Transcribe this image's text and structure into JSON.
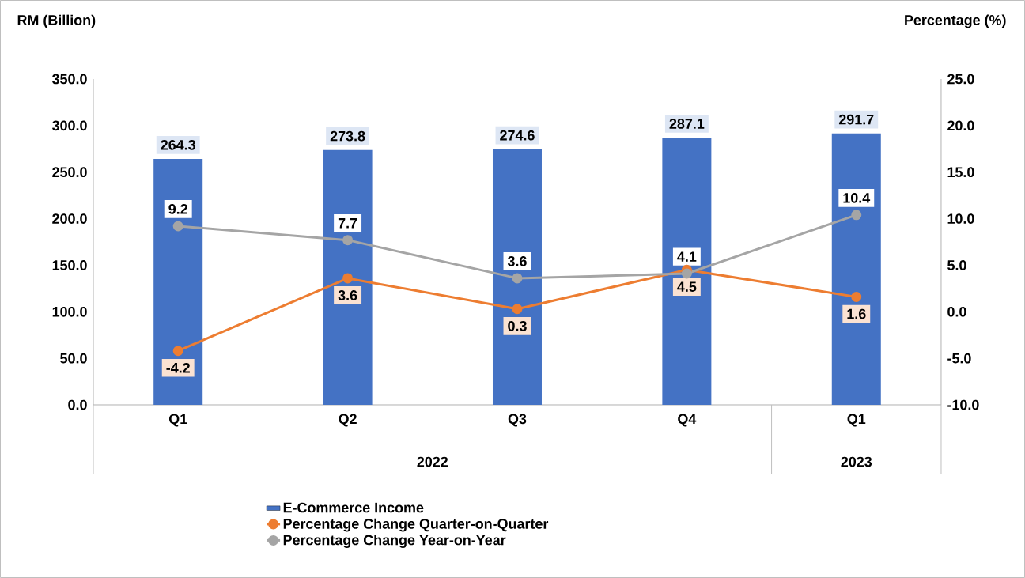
{
  "chart_data": {
    "type": "bar",
    "categories": [
      "Q1",
      "Q2",
      "Q3",
      "Q4",
      "Q1"
    ],
    "series": [
      {
        "name": "E-Commerce Income",
        "color": "#4472c4",
        "values": [
          264.3,
          273.8,
          274.6,
          287.1,
          291.7
        ]
      },
      {
        "name": "Percentage Change Quarter-on-Quarter",
        "type": "line",
        "axis": "y2",
        "color": "#ed7d31",
        "values": [
          -4.2,
          3.6,
          0.3,
          4.5,
          1.6
        ]
      },
      {
        "name": "Percentage Change Year-on-Year",
        "type": "line",
        "axis": "y2",
        "color": "#a5a5a5",
        "values": [
          9.2,
          7.7,
          3.6,
          4.1,
          10.4
        ]
      }
    ],
    "ylabel": "RM (Billion)",
    "y2label": "Percentage (%)",
    "annotations": [
      "2022",
      "2023"
    ],
    "ylim": [
      0,
      350
    ],
    "yticks": [
      {
        "value": 0,
        "label": "0.0"
      },
      {
        "value": 50,
        "label": "50.0"
      },
      {
        "value": 100,
        "label": "100.0"
      },
      {
        "value": 150,
        "label": "150.0"
      },
      {
        "value": 200,
        "label": "200.0"
      },
      {
        "value": 250,
        "label": "250.0"
      },
      {
        "value": 300,
        "label": "300.0"
      },
      {
        "value": 350,
        "label": "350.0"
      }
    ],
    "y2lim": [
      -10,
      25
    ],
    "y2ticks": [
      {
        "value": -10,
        "label": "-10.0"
      },
      {
        "value": -5,
        "label": "-5.0"
      },
      {
        "value": 0,
        "label": "0.0"
      },
      {
        "value": 5,
        "label": "5.0"
      },
      {
        "value": 10,
        "label": "10.0"
      },
      {
        "value": 15,
        "label": "15.0"
      },
      {
        "value": 20,
        "label": "20.0"
      },
      {
        "value": 25,
        "label": "25.0"
      }
    ],
    "legend": "bottom",
    "marker": "circle",
    "data_labels": true
  }
}
